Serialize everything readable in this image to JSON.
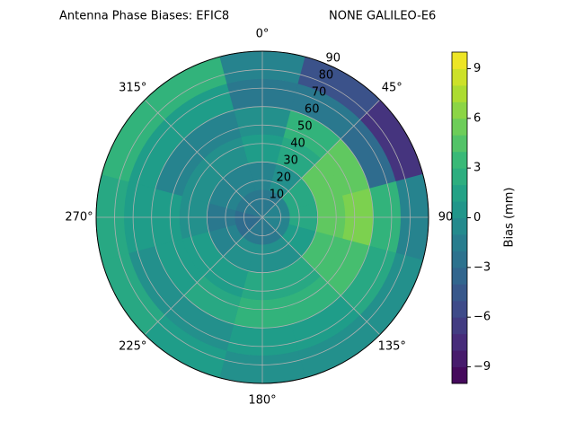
{
  "chart_data": {
    "type": "polar-contour",
    "title": "Antenna Phase Biases: EFIC8",
    "subtitle": "NONE GALILEO-E6",
    "colorbar_label": "Bias (mm)",
    "colormap": "viridis",
    "clim": [
      -10,
      10
    ],
    "cticks": [
      {
        "value": -9,
        "label": "−9"
      },
      {
        "value": -6,
        "label": "−6"
      },
      {
        "value": -3,
        "label": "−3"
      },
      0,
      3,
      6,
      9
    ],
    "rlim": [
      0,
      90
    ],
    "rticks": [
      10,
      20,
      30,
      40,
      50,
      60,
      70,
      80,
      90
    ],
    "thetaticks": [
      {
        "value": 0,
        "label": "0°"
      },
      {
        "value": 45,
        "label": "45°"
      },
      {
        "value": 90,
        "label": "90"
      },
      {
        "value": 135,
        "label": "135°"
      },
      {
        "value": 180,
        "label": "180°"
      },
      {
        "value": 225,
        "label": "225°"
      },
      {
        "value": 270,
        "label": "270°"
      },
      {
        "value": 315,
        "label": "315°"
      }
    ],
    "grid": true,
    "azimuth": [
      0,
      30,
      60,
      90,
      120,
      150,
      180,
      210,
      240,
      270,
      300,
      330
    ],
    "zenith": [
      7.5,
      22.5,
      37.5,
      52.5,
      67.5,
      82.5
    ],
    "values": [
      [
        -2,
        -1,
        1,
        0,
        -2,
        -1
      ],
      [
        -2,
        0,
        2,
        3,
        -2,
        -5
      ],
      [
        -1,
        2,
        5,
        5,
        -3,
        -7
      ],
      [
        -1,
        2,
        5,
        6,
        3,
        -1
      ],
      [
        -1,
        1,
        4,
        4,
        2,
        0
      ],
      [
        -2,
        0,
        2,
        3,
        1,
        0
      ],
      [
        -2,
        0,
        2,
        3,
        1,
        0
      ],
      [
        -2,
        0,
        1,
        2,
        0,
        1
      ],
      [
        -3,
        -1,
        1,
        1,
        0,
        2
      ],
      [
        -3,
        -2,
        0,
        1,
        1,
        2
      ],
      [
        -2,
        -1,
        0,
        -1,
        1,
        3
      ],
      [
        -2,
        -1,
        0,
        -1,
        1,
        3
      ]
    ]
  }
}
